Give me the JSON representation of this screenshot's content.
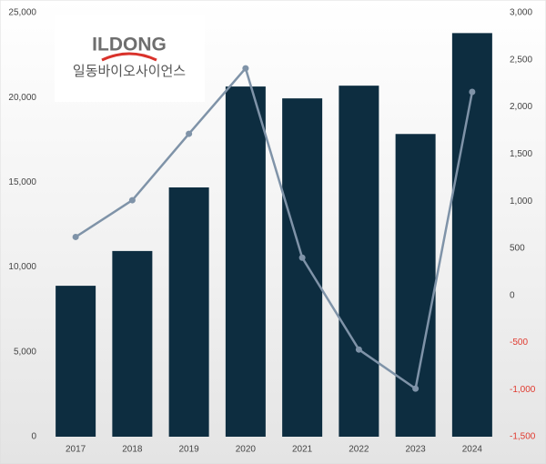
{
  "chart_data": {
    "type": "bar",
    "logo": {
      "name": "ILDONG",
      "subtitle": "일동바이오사이언스"
    },
    "categories": [
      "2017",
      "2018",
      "2019",
      "2020",
      "2021",
      "2022",
      "2023",
      "2024"
    ],
    "series": [
      {
        "type": "bar",
        "color": "#0d2d40",
        "values": [
          8900,
          10950,
          14700,
          20650,
          19950,
          20700,
          17850,
          23800
        ]
      },
      {
        "type": "line",
        "axis": "y2",
        "color": "#7f93a8",
        "values": [
          620,
          1010,
          1715,
          2410,
          400,
          -575,
          -990,
          2160
        ]
      }
    ],
    "ylim": [
      0,
      25000
    ],
    "yticks": [
      0,
      {
        "value": 5000,
        "label": "5,000"
      },
      {
        "value": 10000,
        "label": "10,000"
      },
      {
        "value": 15000,
        "label": "15,000"
      },
      {
        "value": 20000,
        "label": "20,000"
      },
      {
        "value": 25000,
        "label": "25,000"
      }
    ],
    "y2lim": [
      -1500,
      3000
    ],
    "y2ticks": [
      {
        "value": -1500,
        "label": "-1,500"
      },
      {
        "value": -1000,
        "label": "-1,000"
      },
      -500,
      0,
      500,
      {
        "value": 1000,
        "label": "1,000"
      },
      {
        "value": 1500,
        "label": "1,500"
      },
      {
        "value": 2000,
        "label": "2,000"
      },
      {
        "value": 2500,
        "label": "2,500"
      },
      {
        "value": 3000,
        "label": "3,000"
      }
    ],
    "negative_tick_color": "#e03a2f"
  }
}
